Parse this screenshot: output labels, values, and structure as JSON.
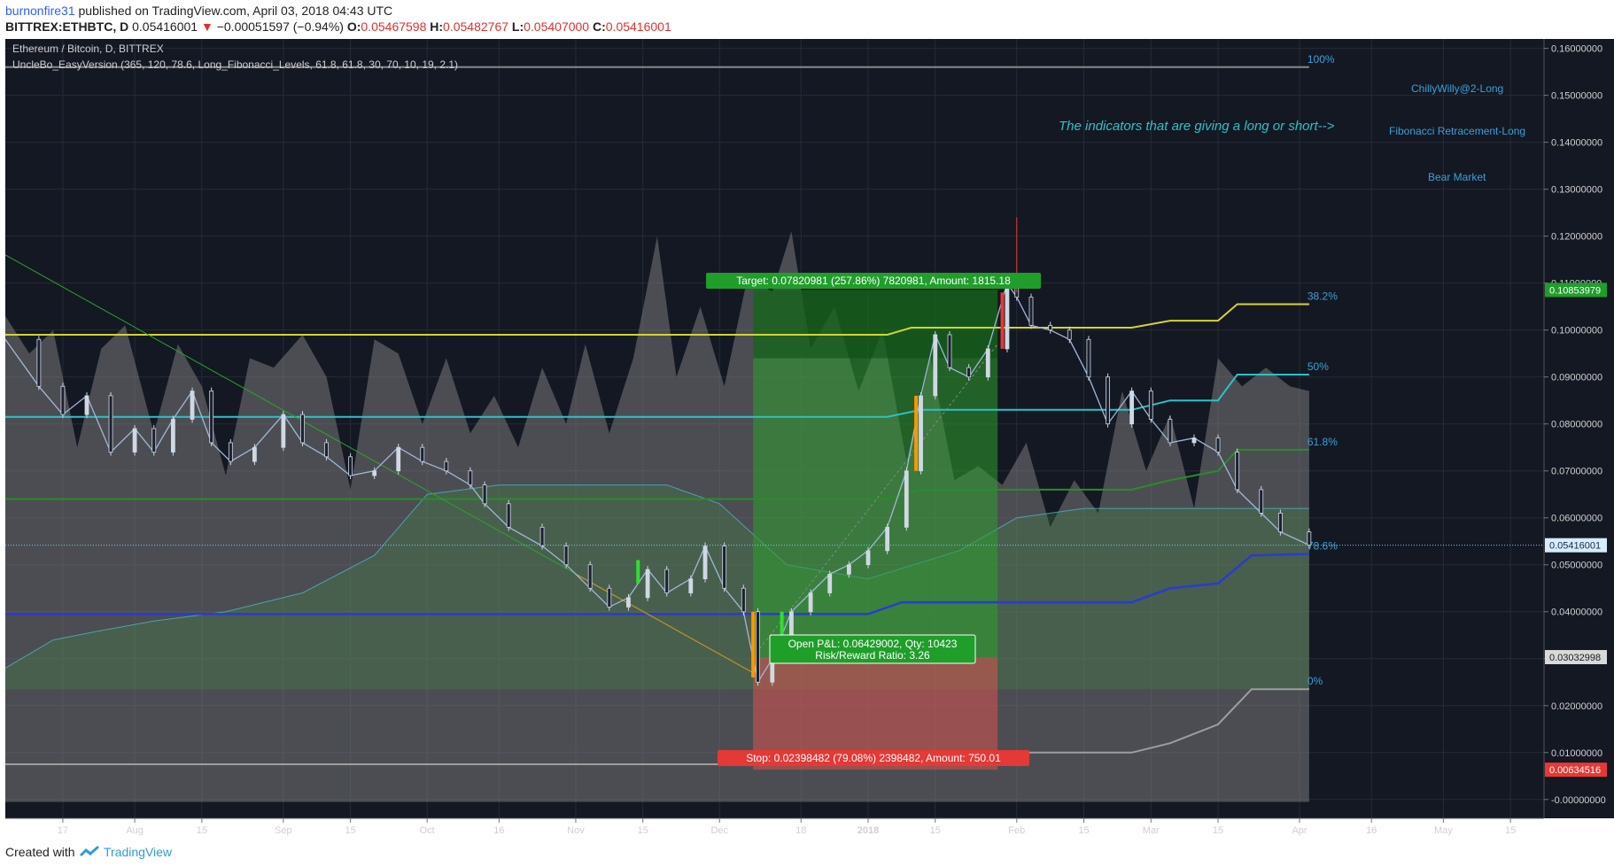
{
  "header": {
    "author": "burnonfire31",
    "published": "published on TradingView.com, April 03, 2018 04:43 UTC",
    "symbol": "BITTREX:ETHBTC, D",
    "last": "0.05416001",
    "change": "−0.00051597 (−0.94%)",
    "o_label": "O:",
    "o_value": "0.05467598",
    "h_label": "H:",
    "h_value": "0.05482767",
    "l_label": "L:",
    "l_value": "0.05407000",
    "c_label": "C:",
    "c_value": "0.05416001"
  },
  "legend": {
    "title": "Ethereum / Bitcoin, D, BITTREX",
    "indicator": "UncleBo_EasyVersion (365, 120, 78.6, Long_Fibonacci_Levels, 61.8, 61.8, 30, 70, 10, 19, 2.1)"
  },
  "annotations": {
    "indicator_note": "The indicators that are giving a long or short-->",
    "signal_1": "ChillyWilly@2-Long",
    "signal_2": "Fibonacci Retracement-Long",
    "signal_3": "Bear Market"
  },
  "position": {
    "target": "Target: 0.07820981 (257.86%) 7820981, Amount: 1815.18",
    "open_line1": "Open P&L: 0.06429002, Qty: 10423",
    "open_line2": "Risk/Reward Ratio: 3.26",
    "stop": "Stop: 0.02398482 (79.08%) 2398482, Amount: 750.01",
    "entry": 0.03032998,
    "target_price": 0.10853979,
    "stop_price": 0.00634516
  },
  "price_tags": {
    "target": "0.10853979",
    "last": "0.05416001",
    "entry": "0.03032998",
    "stop": "0.00634516"
  },
  "footer": {
    "created": "Created with",
    "brand": "TradingView"
  },
  "colors": {
    "background": "#141823",
    "up": "#26c6da",
    "down": "#ef5350",
    "profit": "#2e9e2e",
    "loss": "#d9534f",
    "fib_100": "#888888",
    "fib_382": "#d4d430",
    "fib_50": "#2bc3c6",
    "fib_618": "#2a8c2a",
    "fib_786": "#2a3bd1",
    "fib_0": "#9e9e9e"
  },
  "chart_data": {
    "type": "line",
    "title": "Ethereum / Bitcoin, D, BITTREX",
    "xlabel": "",
    "ylabel": "",
    "ylim": [
      -0.004,
      0.162
    ],
    "grid": true,
    "y_ticks": [
      "0.16000000",
      "0.15000000",
      "0.14000000",
      "0.13000000",
      "0.12000000",
      "0.11000000",
      "0.10000000",
      "0.09000000",
      "0.08000000",
      "0.07000000",
      "0.06000000",
      "0.05000000",
      "0.04000000",
      "0.03000000",
      "0.02000000",
      "0.01000000",
      "-0.00000000"
    ],
    "x_ticks": [
      {
        "label": "17",
        "date": "2017-07-17"
      },
      {
        "label": "Aug",
        "date": "2017-08-01"
      },
      {
        "label": "15",
        "date": "2017-08-15"
      },
      {
        "label": "Sep",
        "date": "2017-09-01"
      },
      {
        "label": "15",
        "date": "2017-09-15"
      },
      {
        "label": "Oct",
        "date": "2017-10-01"
      },
      {
        "label": "16",
        "date": "2017-10-16"
      },
      {
        "label": "Nov",
        "date": "2017-11-01"
      },
      {
        "label": "15",
        "date": "2017-11-15"
      },
      {
        "label": "Dec",
        "date": "2017-12-01"
      },
      {
        "label": "18",
        "date": "2017-12-18"
      },
      {
        "label": "2018",
        "date": "2018-01-01"
      },
      {
        "label": "15",
        "date": "2018-01-15"
      },
      {
        "label": "Feb",
        "date": "2018-02-01"
      },
      {
        "label": "15",
        "date": "2018-02-15"
      },
      {
        "label": "Mar",
        "date": "2018-03-01"
      },
      {
        "label": "15",
        "date": "2018-03-15"
      },
      {
        "label": "Apr",
        "date": "2018-04-01"
      },
      {
        "label": "16",
        "date": "2018-04-16"
      },
      {
        "label": "May",
        "date": "2018-05-01"
      },
      {
        "label": "15",
        "date": "2018-05-15"
      }
    ],
    "x_range": [
      "2017-07-05",
      "2018-05-22"
    ],
    "series": [
      {
        "values_key": "close",
        "points": [
          [
            "2017-07-05",
            0.098
          ],
          [
            "2017-07-12",
            0.088
          ],
          [
            "2017-07-17",
            0.082
          ],
          [
            "2017-07-22",
            0.086
          ],
          [
            "2017-07-27",
            0.074
          ],
          [
            "2017-08-01",
            0.079
          ],
          [
            "2017-08-05",
            0.074
          ],
          [
            "2017-08-09",
            0.081
          ],
          [
            "2017-08-13",
            0.087
          ],
          [
            "2017-08-17",
            0.076
          ],
          [
            "2017-08-21",
            0.072
          ],
          [
            "2017-08-26",
            0.075
          ],
          [
            "2017-09-01",
            0.082
          ],
          [
            "2017-09-05",
            0.076
          ],
          [
            "2017-09-10",
            0.073
          ],
          [
            "2017-09-15",
            0.069
          ],
          [
            "2017-09-20",
            0.07
          ],
          [
            "2017-09-25",
            0.075
          ],
          [
            "2017-09-30",
            0.072
          ],
          [
            "2017-10-05",
            0.07
          ],
          [
            "2017-10-10",
            0.067
          ],
          [
            "2017-10-13",
            0.063
          ],
          [
            "2017-10-18",
            0.058
          ],
          [
            "2017-10-25",
            0.054
          ],
          [
            "2017-10-30",
            0.05
          ],
          [
            "2017-11-04",
            0.045
          ],
          [
            "2017-11-08",
            0.041
          ],
          [
            "2017-11-12",
            0.043
          ],
          [
            "2017-11-16",
            0.049
          ],
          [
            "2017-11-20",
            0.044
          ],
          [
            "2017-11-25",
            0.047
          ],
          [
            "2017-11-28",
            0.054
          ],
          [
            "2017-12-02",
            0.045
          ],
          [
            "2017-12-06",
            0.04
          ],
          [
            "2017-12-09",
            0.025
          ],
          [
            "2017-12-12",
            0.03
          ],
          [
            "2017-12-16",
            0.04
          ],
          [
            "2017-12-20",
            0.044
          ],
          [
            "2017-12-24",
            0.048
          ],
          [
            "2017-12-28",
            0.05
          ],
          [
            "2018-01-01",
            0.053
          ],
          [
            "2018-01-05",
            0.058
          ],
          [
            "2018-01-09",
            0.07
          ],
          [
            "2018-01-12",
            0.086
          ],
          [
            "2018-01-15",
            0.099
          ],
          [
            "2018-01-18",
            0.092
          ],
          [
            "2018-01-22",
            0.09
          ],
          [
            "2018-01-26",
            0.096
          ],
          [
            "2018-01-30",
            0.11
          ],
          [
            "2018-02-01",
            0.107
          ],
          [
            "2018-02-04",
            0.101
          ],
          [
            "2018-02-08",
            0.1
          ],
          [
            "2018-02-12",
            0.098
          ],
          [
            "2018-02-16",
            0.09
          ],
          [
            "2018-02-20",
            0.08
          ],
          [
            "2018-02-25",
            0.087
          ],
          [
            "2018-03-01",
            0.081
          ],
          [
            "2018-03-05",
            0.076
          ],
          [
            "2018-03-10",
            0.077
          ],
          [
            "2018-03-15",
            0.074
          ],
          [
            "2018-03-19",
            0.066
          ],
          [
            "2018-03-24",
            0.061
          ],
          [
            "2018-03-28",
            0.057
          ],
          [
            "2018-04-03",
            0.0542
          ]
        ]
      }
    ],
    "fibonacci": [
      {
        "label": "100%",
        "value": 0.156
      },
      {
        "label": "38.2%",
        "value": 0.1055
      },
      {
        "label": "50%",
        "value": 0.0905
      },
      {
        "label": "61.8%",
        "value": 0.0745
      },
      {
        "label": "78.6%",
        "value": 0.0523
      },
      {
        "label": "0%",
        "value": 0.0235
      }
    ]
  }
}
